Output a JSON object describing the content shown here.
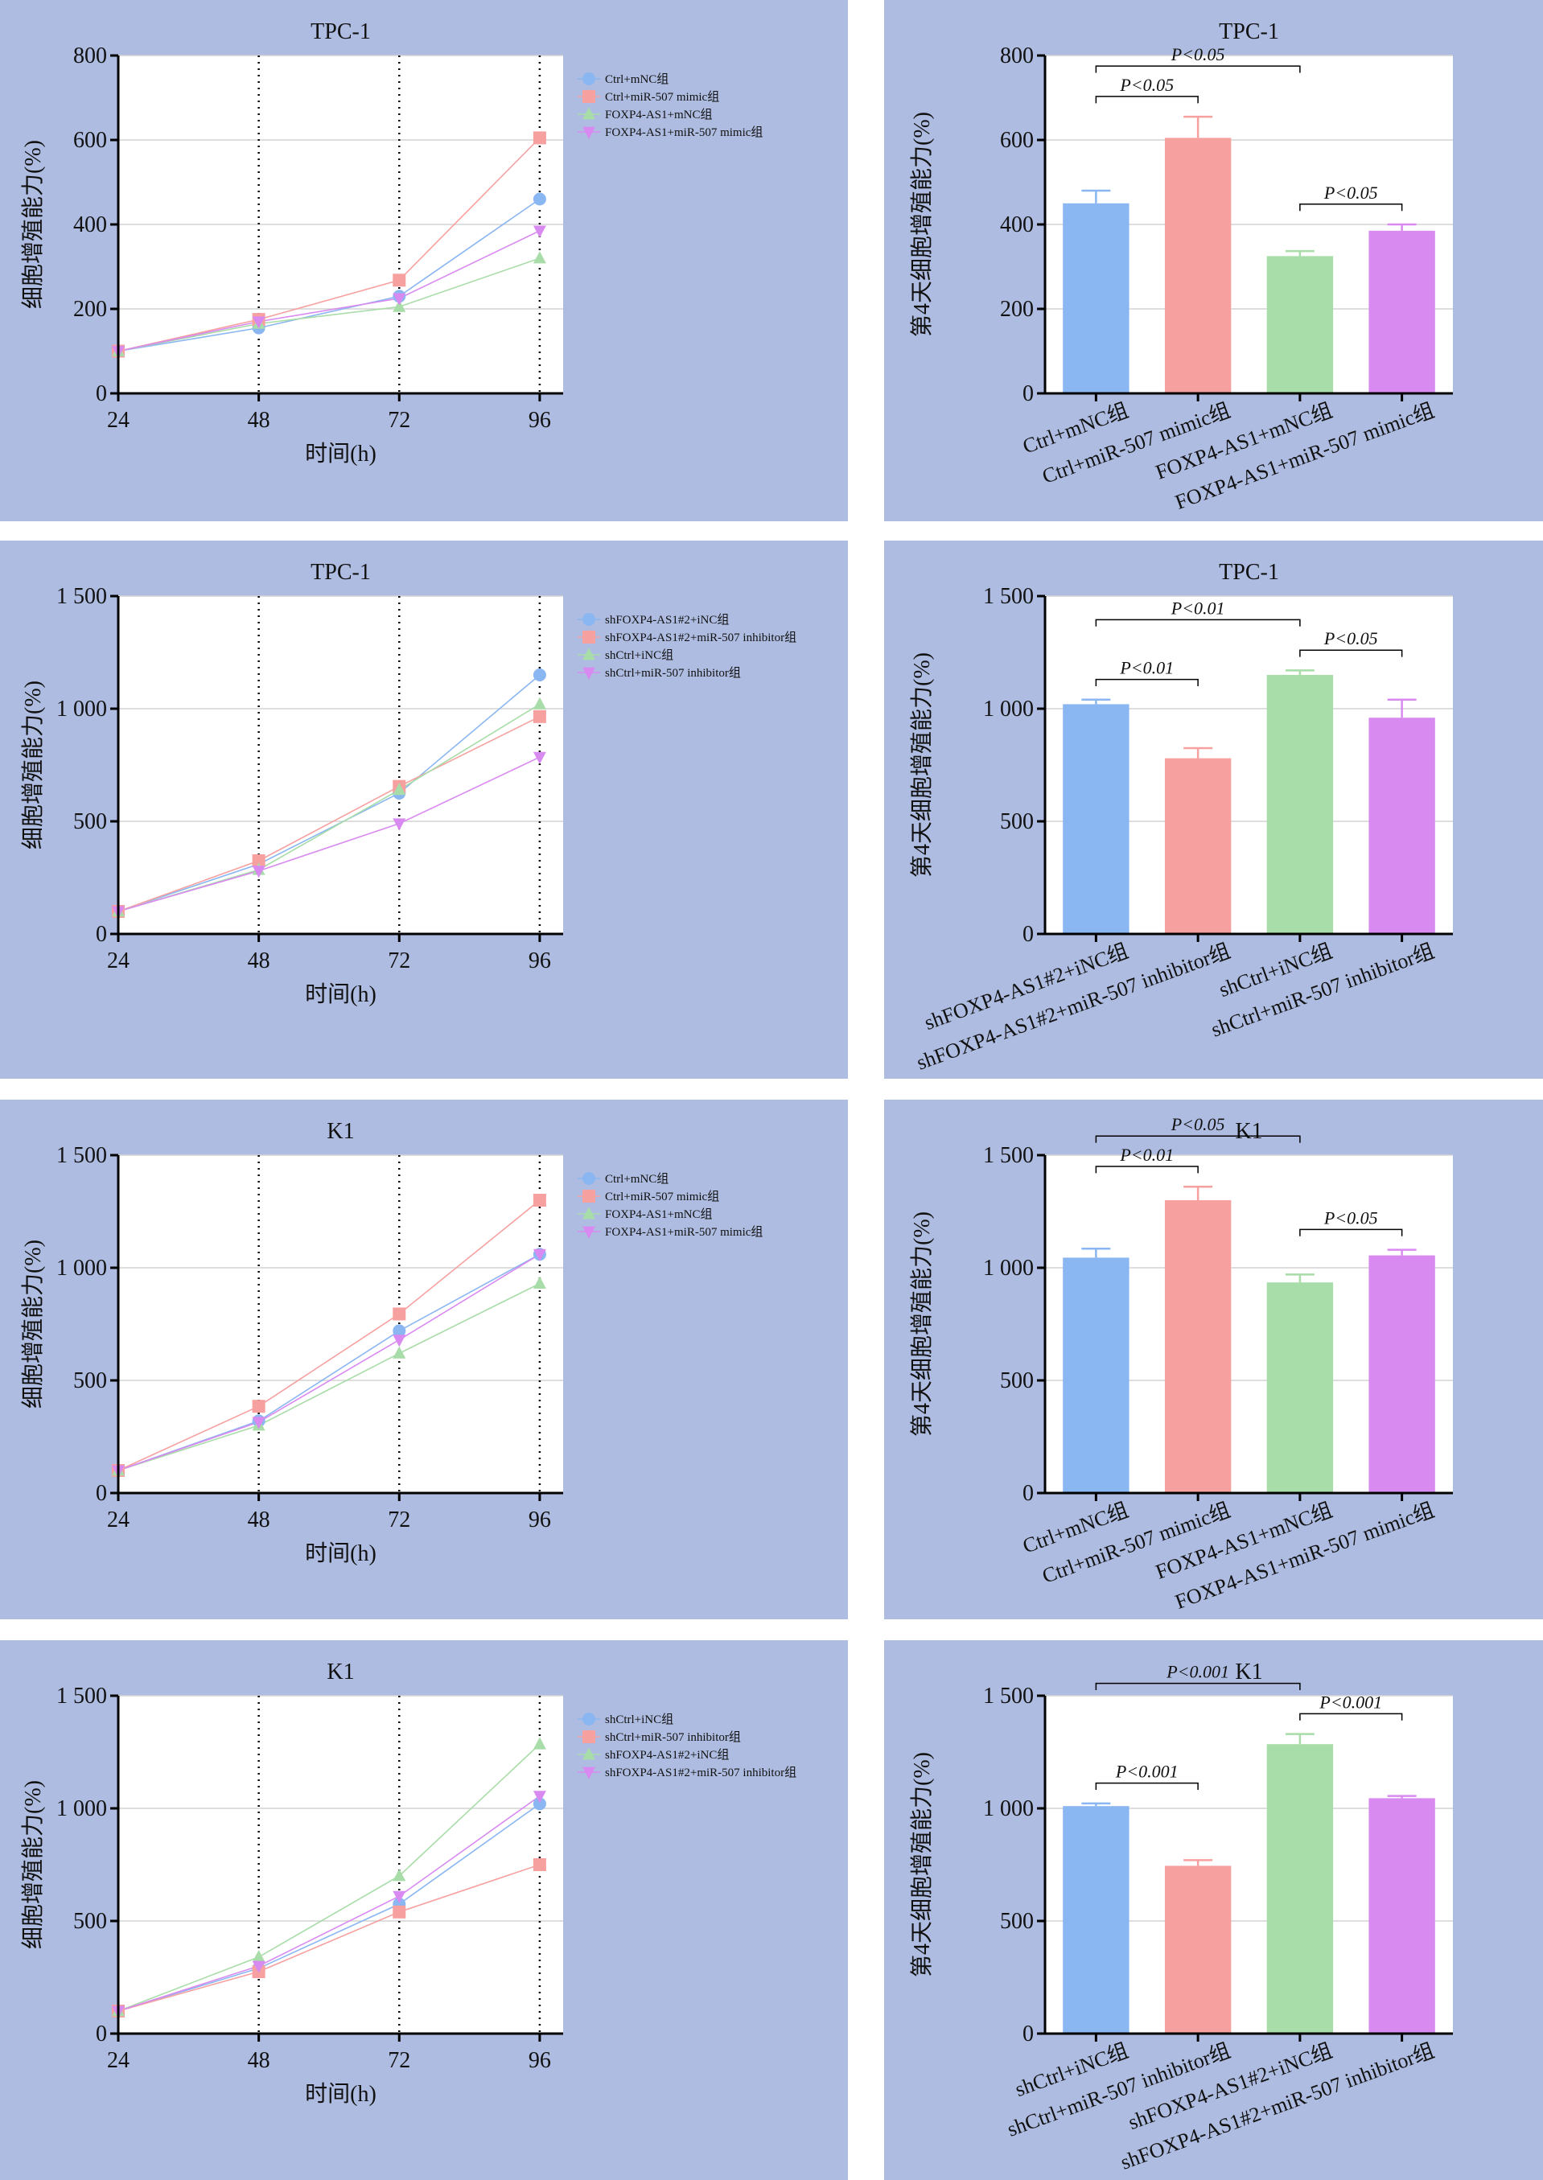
{
  "chart_data": [
    {
      "type": "line",
      "title": "TPC-1",
      "ylabel": "细胞增殖能力(%)",
      "xlabel": "时间(h)",
      "x": [
        24,
        48,
        72,
        96
      ],
      "xlim": [
        24,
        100
      ],
      "xticks": [
        24,
        48,
        72,
        96
      ],
      "ylim": [
        0,
        800
      ],
      "yticks": [
        0,
        200,
        400,
        600,
        800
      ],
      "grid": true,
      "legend": "right",
      "series": [
        {
          "name": "Ctrl+mNC组",
          "color": "#8ab6f2",
          "marker": "circle",
          "values": [
            100,
            155,
            230,
            460
          ]
        },
        {
          "name": "Ctrl+miR-507 mimic组",
          "color": "#f7a0a0",
          "marker": "square",
          "values": [
            100,
            175,
            268,
            605
          ]
        },
        {
          "name": "FOXP4-AS1+mNC组",
          "color": "#a8dca8",
          "marker": "triangle",
          "values": [
            100,
            165,
            205,
            320
          ]
        },
        {
          "name": "FOXP4-AS1+miR-507 mimic组",
          "color": "#d98af0",
          "marker": "triangle-down",
          "values": [
            100,
            170,
            225,
            385
          ]
        }
      ]
    },
    {
      "type": "bar",
      "title": "TPC-1",
      "ylabel": "第4天细胞增殖能力(%)",
      "categories": [
        "Ctrl+mNC组",
        "Ctrl+miR-507 mimic组",
        "FOXP4-AS1+mNC组",
        "FOXP4-AS1+miR-507 mimic组"
      ],
      "values": [
        450,
        605,
        325,
        385
      ],
      "errors": [
        30,
        50,
        12,
        15
      ],
      "colors": [
        "#8ab6f2",
        "#f7a0a0",
        "#a8dca8",
        "#d98af0"
      ],
      "ylim": [
        0,
        800
      ],
      "yticks": [
        0,
        200,
        400,
        600,
        800
      ],
      "grid": true,
      "annotations": [
        {
          "from": 0,
          "to": 1,
          "label": "P<0.05"
        },
        {
          "from": 0,
          "to": 2,
          "label": "P<0.05"
        },
        {
          "from": 2,
          "to": 3,
          "label": "P<0.05"
        }
      ]
    },
    {
      "type": "line",
      "title": "TPC-1",
      "ylabel": "细胞增殖能力(%)",
      "xlabel": "时间(h)",
      "x": [
        24,
        48,
        72,
        96
      ],
      "xlim": [
        24,
        100
      ],
      "xticks": [
        24,
        48,
        72,
        96
      ],
      "ylim": [
        0,
        1500
      ],
      "yticks": [
        0,
        500,
        {
          "value": 1000,
          "label": "1 000"
        },
        {
          "value": 1500,
          "label": "1 500"
        }
      ],
      "grid": true,
      "legend": "right",
      "series": [
        {
          "name": "shFOXP4-AS1#2+iNC组",
          "color": "#8ab6f2",
          "marker": "circle",
          "values": [
            100,
            310,
            625,
            1150
          ]
        },
        {
          "name": "shFOXP4-AS1#2+miR-507 inhibitor组",
          "color": "#f7a0a0",
          "marker": "square",
          "values": [
            100,
            325,
            655,
            965
          ]
        },
        {
          "name": "shCtrl+iNC组",
          "color": "#a8dca8",
          "marker": "triangle",
          "values": [
            100,
            285,
            640,
            1020
          ]
        },
        {
          "name": "shCtrl+miR-507 inhibitor组",
          "color": "#d98af0",
          "marker": "triangle-down",
          "values": [
            100,
            280,
            490,
            785
          ]
        }
      ]
    },
    {
      "type": "bar",
      "title": "TPC-1",
      "ylabel": "第4天细胞增殖能力(%)",
      "categories": [
        "shFOXP4-AS1#2+iNC组",
        "shFOXP4-AS1#2+miR-507 inhibitor组",
        "shCtrl+iNC组",
        "shCtrl+miR-507 inhibitor组"
      ],
      "values": [
        1020,
        780,
        1150,
        960
      ],
      "errors": [
        20,
        45,
        20,
        80
      ],
      "colors": [
        "#8ab6f2",
        "#f7a0a0",
        "#a8dca8",
        "#d98af0"
      ],
      "ylim": [
        0,
        1500
      ],
      "yticks": [
        0,
        500,
        {
          "value": 1000,
          "label": "1 000"
        },
        {
          "value": 1500,
          "label": "1 500"
        }
      ],
      "grid": true,
      "annotations": [
        {
          "from": 0,
          "to": 1,
          "label": "P<0.01"
        },
        {
          "from": 0,
          "to": 2,
          "label": "P<0.01"
        },
        {
          "from": 2,
          "to": 3,
          "label": "P<0.05"
        }
      ]
    },
    {
      "type": "line",
      "title": "K1",
      "ylabel": "细胞增殖能力(%)",
      "xlabel": "时间(h)",
      "x": [
        24,
        48,
        72,
        96
      ],
      "xlim": [
        24,
        100
      ],
      "xticks": [
        24,
        48,
        72,
        96
      ],
      "ylim": [
        0,
        1500
      ],
      "yticks": [
        0,
        500,
        {
          "value": 1000,
          "label": "1 000"
        },
        {
          "value": 1500,
          "label": "1 500"
        }
      ],
      "grid": true,
      "legend": "right",
      "series": [
        {
          "name": "Ctrl+mNC组",
          "color": "#8ab6f2",
          "marker": "circle",
          "values": [
            100,
            320,
            720,
            1060
          ]
        },
        {
          "name": "Ctrl+miR-507 mimic组",
          "color": "#f7a0a0",
          "marker": "square",
          "values": [
            100,
            385,
            795,
            1300
          ]
        },
        {
          "name": "FOXP4-AS1+mNC组",
          "color": "#a8dca8",
          "marker": "triangle",
          "values": [
            100,
            300,
            620,
            930
          ]
        },
        {
          "name": "FOXP4-AS1+miR-507 mimic组",
          "color": "#d98af0",
          "marker": "triangle-down",
          "values": [
            100,
            315,
            680,
            1060
          ]
        }
      ]
    },
    {
      "type": "bar",
      "title": "K1",
      "ylabel": "第4天细胞增殖能力(%)",
      "categories": [
        "Ctrl+mNC组",
        "Ctrl+miR-507 mimic组",
        "FOXP4-AS1+mNC组",
        "FOXP4-AS1+miR-507 mimic组"
      ],
      "values": [
        1045,
        1300,
        935,
        1055
      ],
      "errors": [
        40,
        60,
        35,
        25
      ],
      "colors": [
        "#8ab6f2",
        "#f7a0a0",
        "#a8dca8",
        "#d98af0"
      ],
      "ylim": [
        0,
        1500
      ],
      "yticks": [
        0,
        500,
        {
          "value": 1000,
          "label": "1 000"
        },
        {
          "value": 1500,
          "label": "1 500"
        }
      ],
      "grid": true,
      "annotations": [
        {
          "from": 0,
          "to": 1,
          "label": "P<0.01"
        },
        {
          "from": 0,
          "to": 2,
          "label": "P<0.05"
        },
        {
          "from": 2,
          "to": 3,
          "label": "P<0.05"
        }
      ]
    },
    {
      "type": "line",
      "title": "K1",
      "ylabel": "细胞增殖能力(%)",
      "xlabel": "时间(h)",
      "x": [
        24,
        48,
        72,
        96
      ],
      "xlim": [
        24,
        100
      ],
      "xticks": [
        24,
        48,
        72,
        96
      ],
      "ylim": [
        0,
        1500
      ],
      "yticks": [
        0,
        500,
        {
          "value": 1000,
          "label": "1 000"
        },
        {
          "value": 1500,
          "label": "1 500"
        }
      ],
      "grid": true,
      "legend": "right",
      "series": [
        {
          "name": "shCtrl+iNC组",
          "color": "#8ab6f2",
          "marker": "circle",
          "values": [
            100,
            290,
            575,
            1020
          ]
        },
        {
          "name": "shCtrl+miR-507 inhibitor组",
          "color": "#f7a0a0",
          "marker": "square",
          "values": [
            100,
            275,
            540,
            750
          ]
        },
        {
          "name": "shFOXP4-AS1#2+iNC组",
          "color": "#a8dca8",
          "marker": "triangle",
          "values": [
            100,
            340,
            700,
            1285
          ]
        },
        {
          "name": "shFOXP4-AS1#2+miR-507 inhibitor组",
          "color": "#d98af0",
          "marker": "triangle-down",
          "values": [
            100,
            300,
            610,
            1055
          ]
        }
      ]
    },
    {
      "type": "bar",
      "title": "K1",
      "ylabel": "第4天细胞增殖能力(%)",
      "categories": [
        "shCtrl+iNC组",
        "shCtrl+miR-507 inhibitor组",
        "shFOXP4-AS1#2+iNC组",
        "shFOXP4-AS1#2+miR-507 inhibitor组"
      ],
      "values": [
        1010,
        745,
        1285,
        1045
      ],
      "errors": [
        12,
        25,
        45,
        10
      ],
      "colors": [
        "#8ab6f2",
        "#f7a0a0",
        "#a8dca8",
        "#d98af0"
      ],
      "ylim": [
        0,
        1500
      ],
      "yticks": [
        0,
        500,
        {
          "value": 1000,
          "label": "1 000"
        },
        {
          "value": 1500,
          "label": "1 500"
        }
      ],
      "grid": true,
      "annotations": [
        {
          "from": 0,
          "to": 1,
          "label": "P<0.001"
        },
        {
          "from": 0,
          "to": 2,
          "label": "P<0.001"
        },
        {
          "from": 2,
          "to": 3,
          "label": "P<0.001"
        }
      ]
    }
  ]
}
